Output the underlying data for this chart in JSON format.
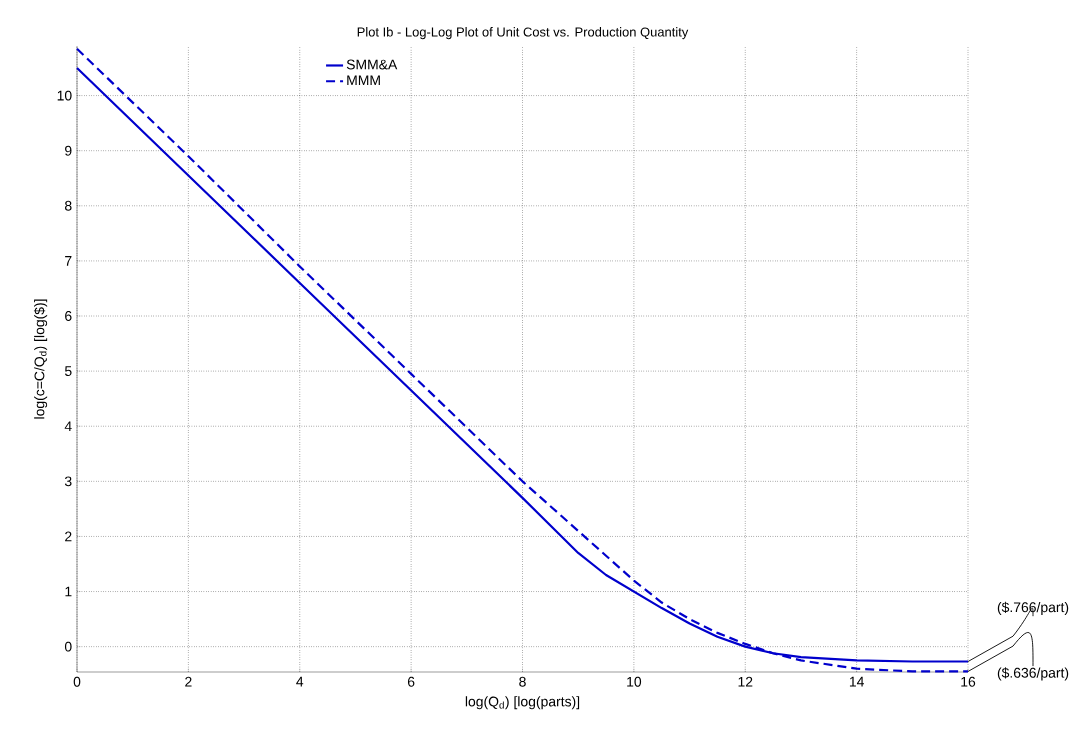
{
  "chart_data": {
    "type": "line",
    "title": "Plot Ib - Log-Log Plot of Unit Cost vs. Production Quantity",
    "xlabel": "log(Q$_{d}$) [log(parts)]",
    "ylabel": "log(c=C/Q$_{d}$) [log($)]",
    "xlim": [
      0,
      16
    ],
    "ylim": [
      -0.46,
      10.9
    ],
    "xticks": [
      0,
      2,
      4,
      6,
      8,
      10,
      12,
      14,
      16
    ],
    "yticks": [
      0,
      1,
      2,
      3,
      4,
      5,
      6,
      7,
      8,
      9,
      10
    ],
    "grid": true,
    "legend": "top",
    "series": [
      {
        "name": "SMM&A",
        "color": "#0000cc",
        "line_style": "solid",
        "x": [
          0,
          2,
          4,
          6,
          8,
          9,
          9.5,
          10,
          10.5,
          11,
          11.5,
          12,
          12.5,
          13,
          14,
          15,
          16
        ],
        "values": [
          10.5,
          8.55,
          6.6,
          4.65,
          2.7,
          1.7,
          1.3,
          1.0,
          0.7,
          0.42,
          0.18,
          0.0,
          -0.12,
          -0.19,
          -0.25,
          -0.27,
          -0.27
        ]
      },
      {
        "name": "MMM",
        "color": "#0000cc",
        "line_style": "dashed",
        "x": [
          0,
          2,
          4,
          6,
          8,
          9,
          9.5,
          10,
          10.5,
          11,
          11.5,
          12,
          12.5,
          13,
          14,
          15,
          16
        ],
        "values": [
          10.85,
          8.9,
          6.9,
          4.95,
          3.0,
          2.1,
          1.65,
          1.2,
          0.8,
          0.5,
          0.25,
          0.05,
          -0.12,
          -0.25,
          -0.4,
          -0.45,
          -0.45
        ]
      }
    ],
    "annotations": [
      {
        "text": "($.766/part)",
        "x": 16,
        "y": -0.27
      },
      {
        "text": "($.636/part)",
        "x": 16,
        "y": -0.45
      }
    ]
  }
}
